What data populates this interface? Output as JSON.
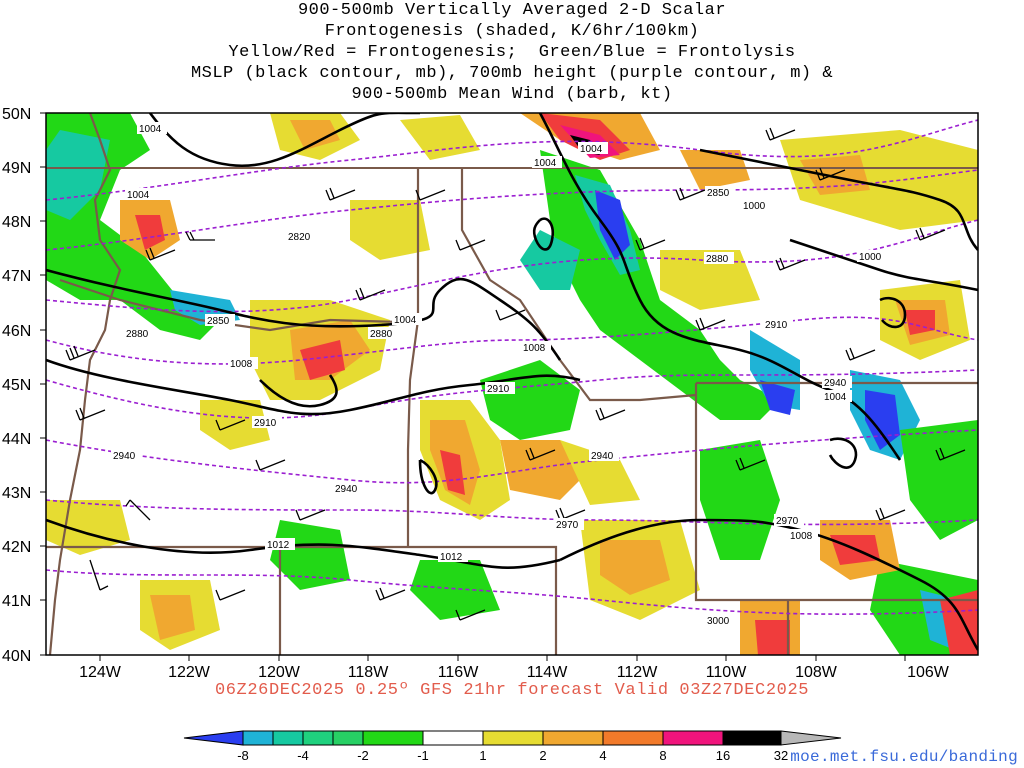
{
  "title_lines": [
    "900-500mb Vertically Averaged 2-D Scalar",
    "Frontogenesis (shaded, K/6hr/100km)",
    "Yellow/Red = Frontogenesis;  Green/Blue = Frontolysis",
    "MSLP (black contour, mb), 700mb height (purple contour, m) &",
    "900-500mb Mean Wind (barb, kt)"
  ],
  "lat_labels": [
    "50N",
    "49N",
    "48N",
    "47N",
    "46N",
    "45N",
    "44N",
    "43N",
    "42N",
    "41N",
    "40N"
  ],
  "lon_labels": [
    "124W",
    "122W",
    "120W",
    "118W",
    "116W",
    "114W",
    "112W",
    "110W",
    "108W",
    "106W"
  ],
  "mslp_labels": [
    "1004",
    "1004",
    "1004",
    "1004",
    "1000",
    "1000",
    "1004",
    "1008",
    "1008",
    "1004",
    "1012",
    "1012",
    "1008"
  ],
  "height_labels": [
    "2850",
    "2820",
    "2880",
    "2850",
    "2880",
    "2880",
    "2910",
    "2910",
    "2910",
    "2940",
    "2940",
    "2940",
    "2940",
    "2970",
    "2970",
    "3000"
  ],
  "valid_text": "06Z26DEC2025 0.25º GFS 21hr forecast Valid 03Z27DEC2025",
  "credit": "moe.met.fsu.edu/banding",
  "colorbar": {
    "labels": [
      "-8",
      "-4",
      "-2",
      "-1",
      "1",
      "2",
      "4",
      "8",
      "16",
      "32"
    ],
    "colors": [
      "#2a3ef0",
      "#1fb3d6",
      "#16c9a1",
      "#27d064",
      "#22d816",
      "#ffffff",
      "#e6dc32",
      "#f0a830",
      "#f27a2a",
      "#f03c3c",
      "#f0147c",
      "#000000",
      "#b8b8b8"
    ]
  },
  "colors": {
    "mslp": "#000000",
    "height": "#9b1fd1",
    "borders": "#7a5a4a",
    "valid": "#e25c4c",
    "credit": "#3a6ad9"
  }
}
